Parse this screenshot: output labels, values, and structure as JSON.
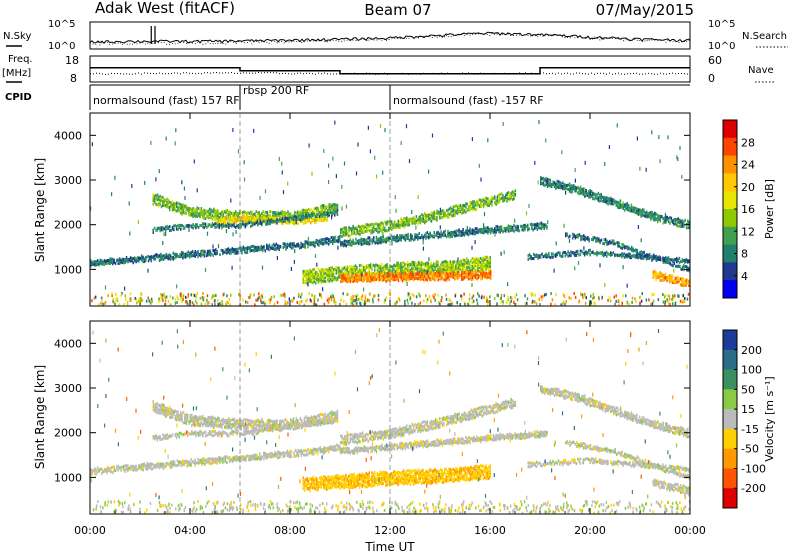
{
  "header": {
    "title": "Adak West (fitACF)",
    "beam": "Beam 07",
    "date": "07/May/2015"
  },
  "noise_panel": {
    "left_label": "N.Sky",
    "right_label": "N.Search",
    "tick_top": "10^5",
    "tick_bottom": "10^0"
  },
  "freq_panel": {
    "left_label": "Freq.",
    "left_unit": "[MHz]",
    "right_label": "Nave",
    "left_ticks": [
      "18",
      "8"
    ],
    "right_ticks": [
      "60",
      "0"
    ]
  },
  "cpid_panel": {
    "label": "CPID",
    "modes": [
      {
        "text": "normalsound (fast) 157 RF",
        "start_hour": 0
      },
      {
        "text": "rbsp 200 RF",
        "start_hour": 6
      },
      {
        "text": "normalsound (fast) -157 RF",
        "start_hour": 12
      }
    ]
  },
  "colorbars": {
    "power": {
      "title": "Power [dB]",
      "ticks": [
        "28",
        "24",
        "20",
        "16",
        "12",
        "8",
        "4"
      ],
      "colors": [
        "#dd0000",
        "#ff4400",
        "#ff9000",
        "#ffc800",
        "#e6e600",
        "#90c800",
        "#40a050",
        "#208070",
        "#203890",
        "#0000ee"
      ]
    },
    "velocity": {
      "title": "Velocity [m s⁻¹]",
      "ticks": [
        "200",
        "100",
        "50",
        "15",
        "-15",
        "-50",
        "-100",
        "-200"
      ],
      "colors": [
        "#1c3c9a",
        "#2a6e8a",
        "#3a9060",
        "#88cc44",
        "#bbbbbb",
        "#ffd000",
        "#ff9900",
        "#ff5500",
        "#dd0000"
      ]
    }
  },
  "axes": {
    "ylabel": "Slant Range [km]",
    "xlabel": "Time UT",
    "yticks": [
      "4000",
      "3000",
      "2000",
      "1000"
    ],
    "xticks": [
      "00:00",
      "04:00",
      "08:00",
      "12:00",
      "16:00",
      "20:00",
      "00:00"
    ]
  },
  "chart_data": [
    {
      "type": "line",
      "title": "N.Sky / N.Search",
      "x_range": [
        0,
        24
      ],
      "y_scale": "log",
      "ylim": [
        "10^0",
        "10^5"
      ],
      "series": [
        {
          "name": "N.Sky",
          "x": [
            0,
            2,
            4,
            6,
            8,
            10,
            12,
            14,
            16,
            18,
            20,
            22,
            24
          ],
          "y": [
            20,
            25,
            25,
            30,
            40,
            60,
            100,
            300,
            800,
            400,
            150,
            60,
            40
          ]
        },
        {
          "name": "N.Search",
          "x": [
            0,
            2,
            4,
            6,
            8,
            10,
            12,
            14,
            16,
            18,
            20,
            22,
            24
          ],
          "y": [
            10,
            12,
            12,
            15,
            20,
            30,
            60,
            200,
            500,
            300,
            100,
            40,
            25
          ]
        }
      ]
    },
    {
      "type": "line",
      "title": "Freq. / Nave",
      "series": [
        {
          "name": "Freq.",
          "x": [
            0,
            6,
            6,
            10,
            10,
            18,
            18,
            24
          ],
          "y": [
            13.5,
            13.5,
            12.3,
            12.3,
            11.2,
            11.2,
            13.5,
            13.5
          ]
        },
        {
          "name": "Nave",
          "x": [
            0,
            6,
            10,
            18,
            24
          ],
          "y": [
            20,
            22,
            20,
            21,
            20
          ]
        }
      ]
    },
    {
      "type": "heatmap",
      "title": "Power [dB]",
      "x_range": [
        0,
        24
      ],
      "y_range": [
        180,
        4500
      ],
      "clim": [
        0,
        30
      ],
      "features": [
        {
          "x": [
            0,
            3,
            6,
            9,
            10
          ],
          "y": [
            1150,
            1300,
            1450,
            1600,
            1700
          ],
          "thickness": 120,
          "value": 6
        },
        {
          "x": [
            2.5,
            4,
            6,
            8,
            9.9
          ],
          "y": [
            2600,
            2300,
            2200,
            2200,
            2400
          ],
          "thickness": 220,
          "value": 12
        },
        {
          "x": [
            5,
            6.5,
            8,
            9.5
          ],
          "y": [
            2100,
            2150,
            2100,
            2150
          ],
          "thickness": 120,
          "value": 18
        },
        {
          "x": [
            2.5,
            4,
            6,
            8,
            9.9
          ],
          "y": [
            1900,
            2000,
            2000,
            2150,
            2300
          ],
          "thickness": 90,
          "value": 7
        },
        {
          "x": [
            10,
            12,
            14,
            16,
            17
          ],
          "y": [
            1850,
            2000,
            2250,
            2550,
            2700
          ],
          "thickness": 200,
          "value": 12
        },
        {
          "x": [
            10,
            12,
            14,
            16,
            18.3
          ],
          "y": [
            1600,
            1700,
            1800,
            1900,
            2000
          ],
          "thickness": 120,
          "value": 7
        },
        {
          "x": [
            8.5,
            10,
            12,
            14,
            16
          ],
          "y": [
            850,
            920,
            1000,
            1050,
            1150
          ],
          "thickness": 300,
          "value": 13
        },
        {
          "x": [
            10,
            12,
            14,
            16
          ],
          "y": [
            820,
            850,
            870,
            900
          ],
          "thickness": 170,
          "value": 24
        },
        {
          "x": [
            18,
            19.5,
            21,
            22.5,
            24
          ],
          "y": [
            3000,
            2800,
            2500,
            2200,
            2000
          ],
          "thickness": 160,
          "value": 8
        },
        {
          "x": [
            17.5,
            20,
            22,
            24
          ],
          "y": [
            1300,
            1400,
            1300,
            1200
          ],
          "thickness": 90,
          "value": 6
        },
        {
          "x": [
            19,
            21,
            23,
            24
          ],
          "y": [
            1800,
            1600,
            1200,
            1000
          ],
          "thickness": 100,
          "value": 6
        },
        {
          "x": [
            22.5,
            23.3,
            24
          ],
          "y": [
            900,
            800,
            700
          ],
          "thickness": 160,
          "value": 22
        }
      ]
    },
    {
      "type": "heatmap",
      "title": "Velocity [m s-1]",
      "x_range": [
        0,
        24
      ],
      "y_range": [
        180,
        4500
      ],
      "clim": [
        -200,
        200
      ],
      "features": [
        {
          "x": [
            0,
            3,
            6,
            9,
            10
          ],
          "y": [
            1150,
            1300,
            1450,
            1600,
            1700
          ],
          "thickness": 120,
          "value": 0
        },
        {
          "x": [
            2.5,
            4,
            6,
            8,
            9.9
          ],
          "y": [
            2600,
            2300,
            2200,
            2200,
            2400
          ],
          "thickness": 220,
          "value": 0
        },
        {
          "x": [
            2.5,
            4,
            6,
            8,
            9.9
          ],
          "y": [
            1900,
            2000,
            2000,
            2150,
            2300
          ],
          "thickness": 90,
          "value": 0
        },
        {
          "x": [
            10,
            12,
            14,
            16,
            17
          ],
          "y": [
            1850,
            2000,
            2250,
            2550,
            2700
          ],
          "thickness": 200,
          "value": 0
        },
        {
          "x": [
            10,
            12,
            14,
            16,
            18.3
          ],
          "y": [
            1600,
            1700,
            1800,
            1900,
            2000
          ],
          "thickness": 120,
          "value": 0
        },
        {
          "x": [
            8.5,
            10,
            12,
            14,
            16
          ],
          "y": [
            850,
            920,
            1000,
            1050,
            1150
          ],
          "thickness": 300,
          "value": -40
        },
        {
          "x": [
            18,
            19.5,
            21,
            22.5,
            24
          ],
          "y": [
            3000,
            2800,
            2500,
            2200,
            2000
          ],
          "thickness": 160,
          "value": 0
        },
        {
          "x": [
            17.5,
            20,
            22,
            24
          ],
          "y": [
            1300,
            1400,
            1300,
            1200
          ],
          "thickness": 90,
          "value": 0
        },
        {
          "x": [
            19,
            21,
            23,
            24
          ],
          "y": [
            1800,
            1600,
            1200,
            1000
          ],
          "thickness": 100,
          "value": 0
        },
        {
          "x": [
            22.5,
            23.3,
            24
          ],
          "y": [
            900,
            800,
            700
          ],
          "thickness": 160,
          "value": 0
        }
      ]
    }
  ]
}
